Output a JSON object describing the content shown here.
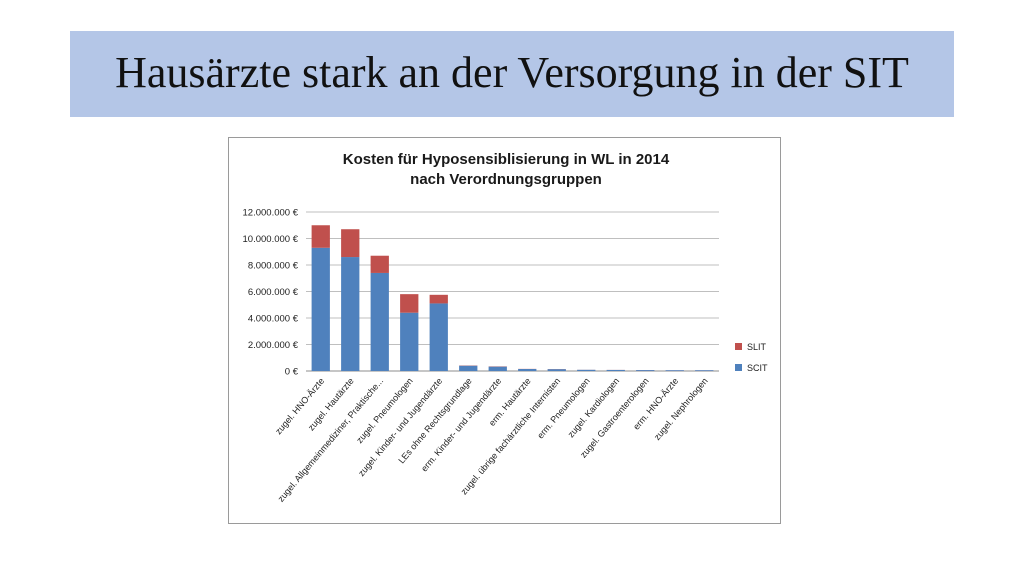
{
  "slide": {
    "title": "Hausärzte stark an der Versorgung in der SIT"
  },
  "colors": {
    "title_band": "#b4c6e7",
    "scit": "#4f81bd",
    "slit": "#c0504d"
  },
  "chart_data": {
    "type": "bar",
    "stacked": true,
    "title_lines": [
      "Kosten für Hyposensiblisierung in WL in 2014",
      "nach Verordnungsgruppen"
    ],
    "categories": [
      "zugel. HNO-Ärzte",
      "zugel. Hautärzte",
      "zugel. Allgemeinmediziner, Praktische...",
      "zugel. Pneumologen",
      "zugel. Kinder- und Jugendärzte",
      "LEs ohne Rechtsgrundlage",
      "erm. Kinder- und Jugendärzte",
      "erm. Hautärzte",
      "zugel. übrige fachärztliche Internisten",
      "erm. Pneumologen",
      "zugel. Kardiologen",
      "zugel. Gastroenterologen",
      "erm. HNO-Ärzte",
      "zugel. Nephrologen"
    ],
    "series": [
      {
        "name": "SCIT",
        "values": [
          9300000,
          8600000,
          7400000,
          4400000,
          5100000,
          400000,
          330000,
          150000,
          140000,
          90000,
          80000,
          70000,
          60000,
          60000
        ]
      },
      {
        "name": "SLIT",
        "values": [
          1700000,
          2100000,
          1300000,
          1400000,
          650000,
          20000,
          20000,
          10000,
          10000,
          5000,
          5000,
          5000,
          5000,
          5000
        ]
      }
    ],
    "ylim": [
      0,
      12000000
    ],
    "yticks": [
      0,
      2000000,
      4000000,
      6000000,
      8000000,
      10000000,
      12000000
    ],
    "ytick_labels": [
      "0 €",
      "2.000.000 €",
      "4.000.000 €",
      "6.000.000 €",
      "8.000.000 €",
      "10.000.000 €",
      "12.000.000 €"
    ],
    "legend": [
      "SLIT",
      "SCIT"
    ],
    "legend_position": "right",
    "grid": true
  }
}
